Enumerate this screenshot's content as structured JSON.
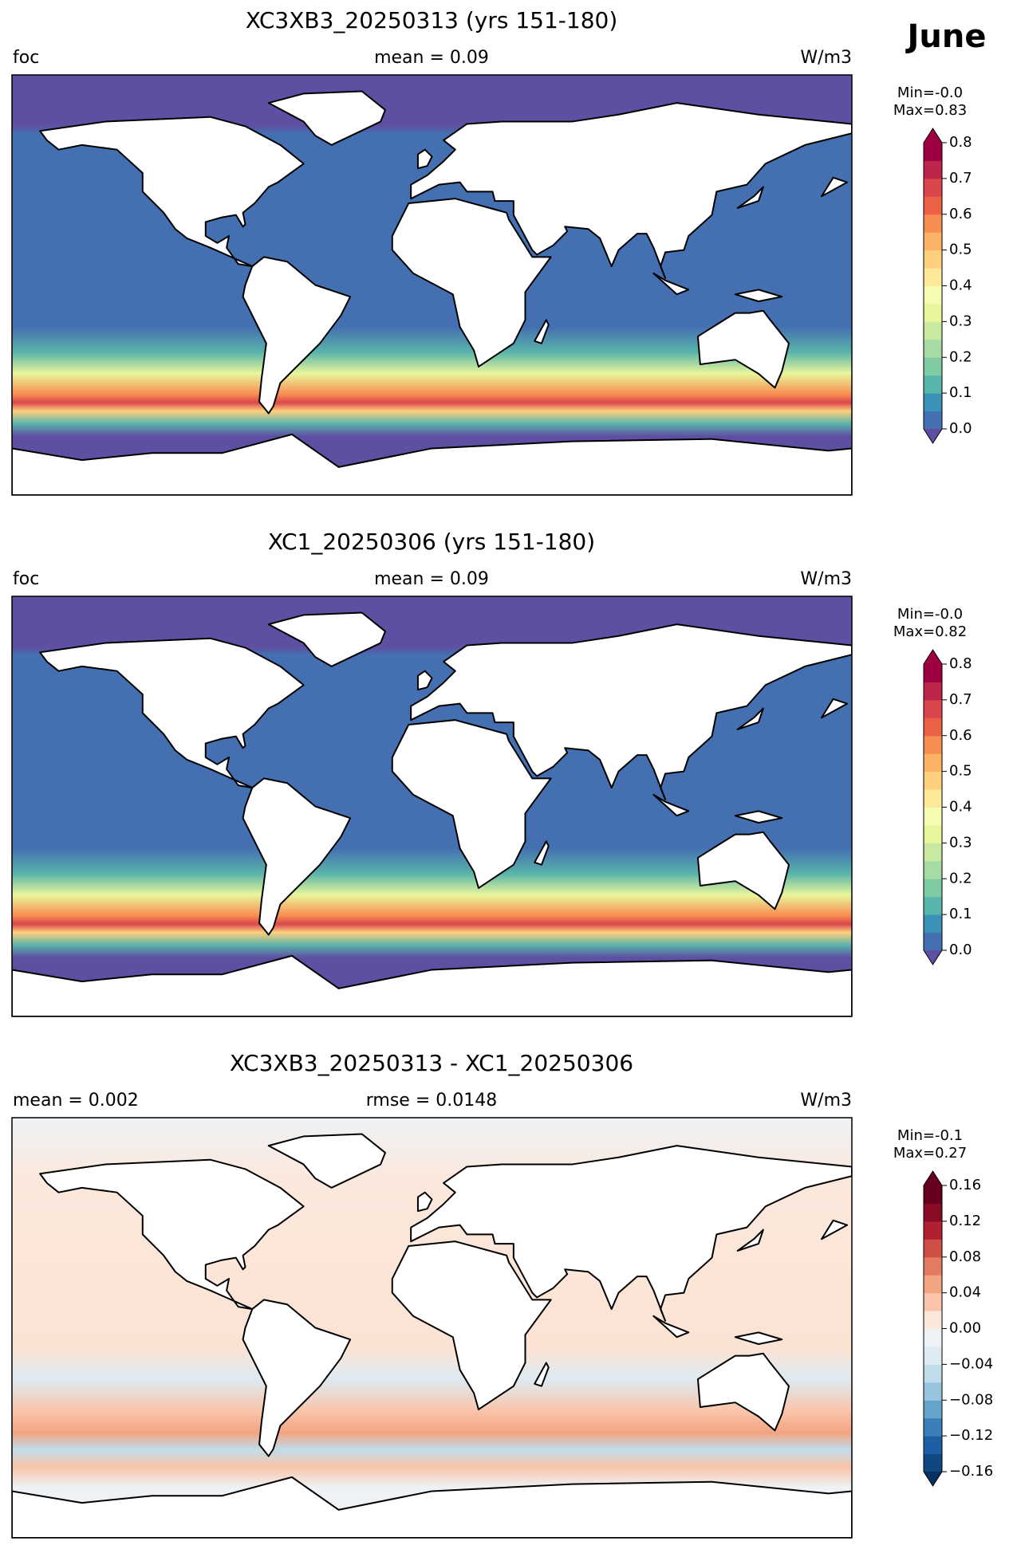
{
  "title": "June",
  "panels": [
    {
      "title": "XC3XB3_20250313 (yrs 151-180)",
      "left": "foc",
      "center": "mean = 0.09",
      "right": "W/m3",
      "min_label": "Min=-0.0",
      "max_label": "Max=0.83",
      "colorbar": {
        "lim": [
          0,
          0.8
        ],
        "ticks": [
          {
            "value": 0,
            "label": "0.0"
          },
          {
            "value": 0.1,
            "label": "0.1"
          },
          {
            "value": 0.2,
            "label": "0.2"
          },
          {
            "value": 0.3,
            "label": "0.3"
          },
          {
            "value": 0.4,
            "label": "0.4"
          },
          {
            "value": 0.5,
            "label": "0.5"
          },
          {
            "value": 0.6,
            "label": "0.6"
          },
          {
            "value": 0.7,
            "label": "0.7"
          },
          {
            "value": 0.8,
            "label": "0.8"
          }
        ],
        "colors": [
          "#4470b1",
          "#3b92b8",
          "#59b4aa",
          "#7ecba4",
          "#a6dba4",
          "#cae9a0",
          "#e8f69c",
          "#f7fcb3",
          "#fee999",
          "#fed07e",
          "#fdb365",
          "#f88d51",
          "#ec6145",
          "#da464c",
          "#be254a",
          "#9e0142"
        ],
        "under_color": "#5e4fa2",
        "over_color": "#9e0142"
      }
    },
    {
      "title": "XC1_20250306 (yrs 151-180)",
      "left": "foc",
      "center": "mean = 0.09",
      "right": "W/m3",
      "min_label": "Min=-0.0",
      "max_label": "Max=0.82",
      "colorbar": {
        "lim": [
          0,
          0.8
        ],
        "ticks": [
          {
            "value": 0,
            "label": "0.0"
          },
          {
            "value": 0.1,
            "label": "0.1"
          },
          {
            "value": 0.2,
            "label": "0.2"
          },
          {
            "value": 0.3,
            "label": "0.3"
          },
          {
            "value": 0.4,
            "label": "0.4"
          },
          {
            "value": 0.5,
            "label": "0.5"
          },
          {
            "value": 0.6,
            "label": "0.6"
          },
          {
            "value": 0.7,
            "label": "0.7"
          },
          {
            "value": 0.8,
            "label": "0.8"
          }
        ],
        "colors": [
          "#4470b1",
          "#3b92b8",
          "#59b4aa",
          "#7ecba4",
          "#a6dba4",
          "#cae9a0",
          "#e8f69c",
          "#f7fcb3",
          "#fee999",
          "#fed07e",
          "#fdb365",
          "#f88d51",
          "#ec6145",
          "#da464c",
          "#be254a",
          "#9e0142"
        ],
        "under_color": "#5e4fa2",
        "over_color": "#9e0142"
      }
    },
    {
      "title": "XC3XB3_20250313 - XC1_20250306",
      "left": "mean = 0.002",
      "center": "rmse = 0.0148",
      "right": "W/m3",
      "min_label": "Min=-0.1",
      "max_label": "Max=0.27",
      "colorbar": {
        "lim": [
          -0.16,
          0.16
        ],
        "ticks": [
          {
            "value": -0.16,
            "label": "−0.16"
          },
          {
            "value": -0.12,
            "label": "−0.12"
          },
          {
            "value": -0.08,
            "label": "−0.08"
          },
          {
            "value": -0.04,
            "label": "−0.04"
          },
          {
            "value": 0,
            "label": "0.00"
          },
          {
            "value": 0.04,
            "label": "0.04"
          },
          {
            "value": 0.08,
            "label": "0.08"
          },
          {
            "value": 0.12,
            "label": "0.12"
          },
          {
            "value": 0.16,
            "label": "0.16"
          }
        ],
        "colors": [
          "#114781",
          "#1d5fa2",
          "#3b7fb9",
          "#65a3cb",
          "#98c4dd",
          "#c1ddeb",
          "#deebf2",
          "#eef2f5",
          "#fbe8dc",
          "#f9c4a9",
          "#f3a481",
          "#e27b62",
          "#ce4f45",
          "#b2202f",
          "#8a0b25",
          "#67001f"
        ],
        "under_color": "#053061",
        "over_color": "#67001f"
      }
    }
  ]
}
